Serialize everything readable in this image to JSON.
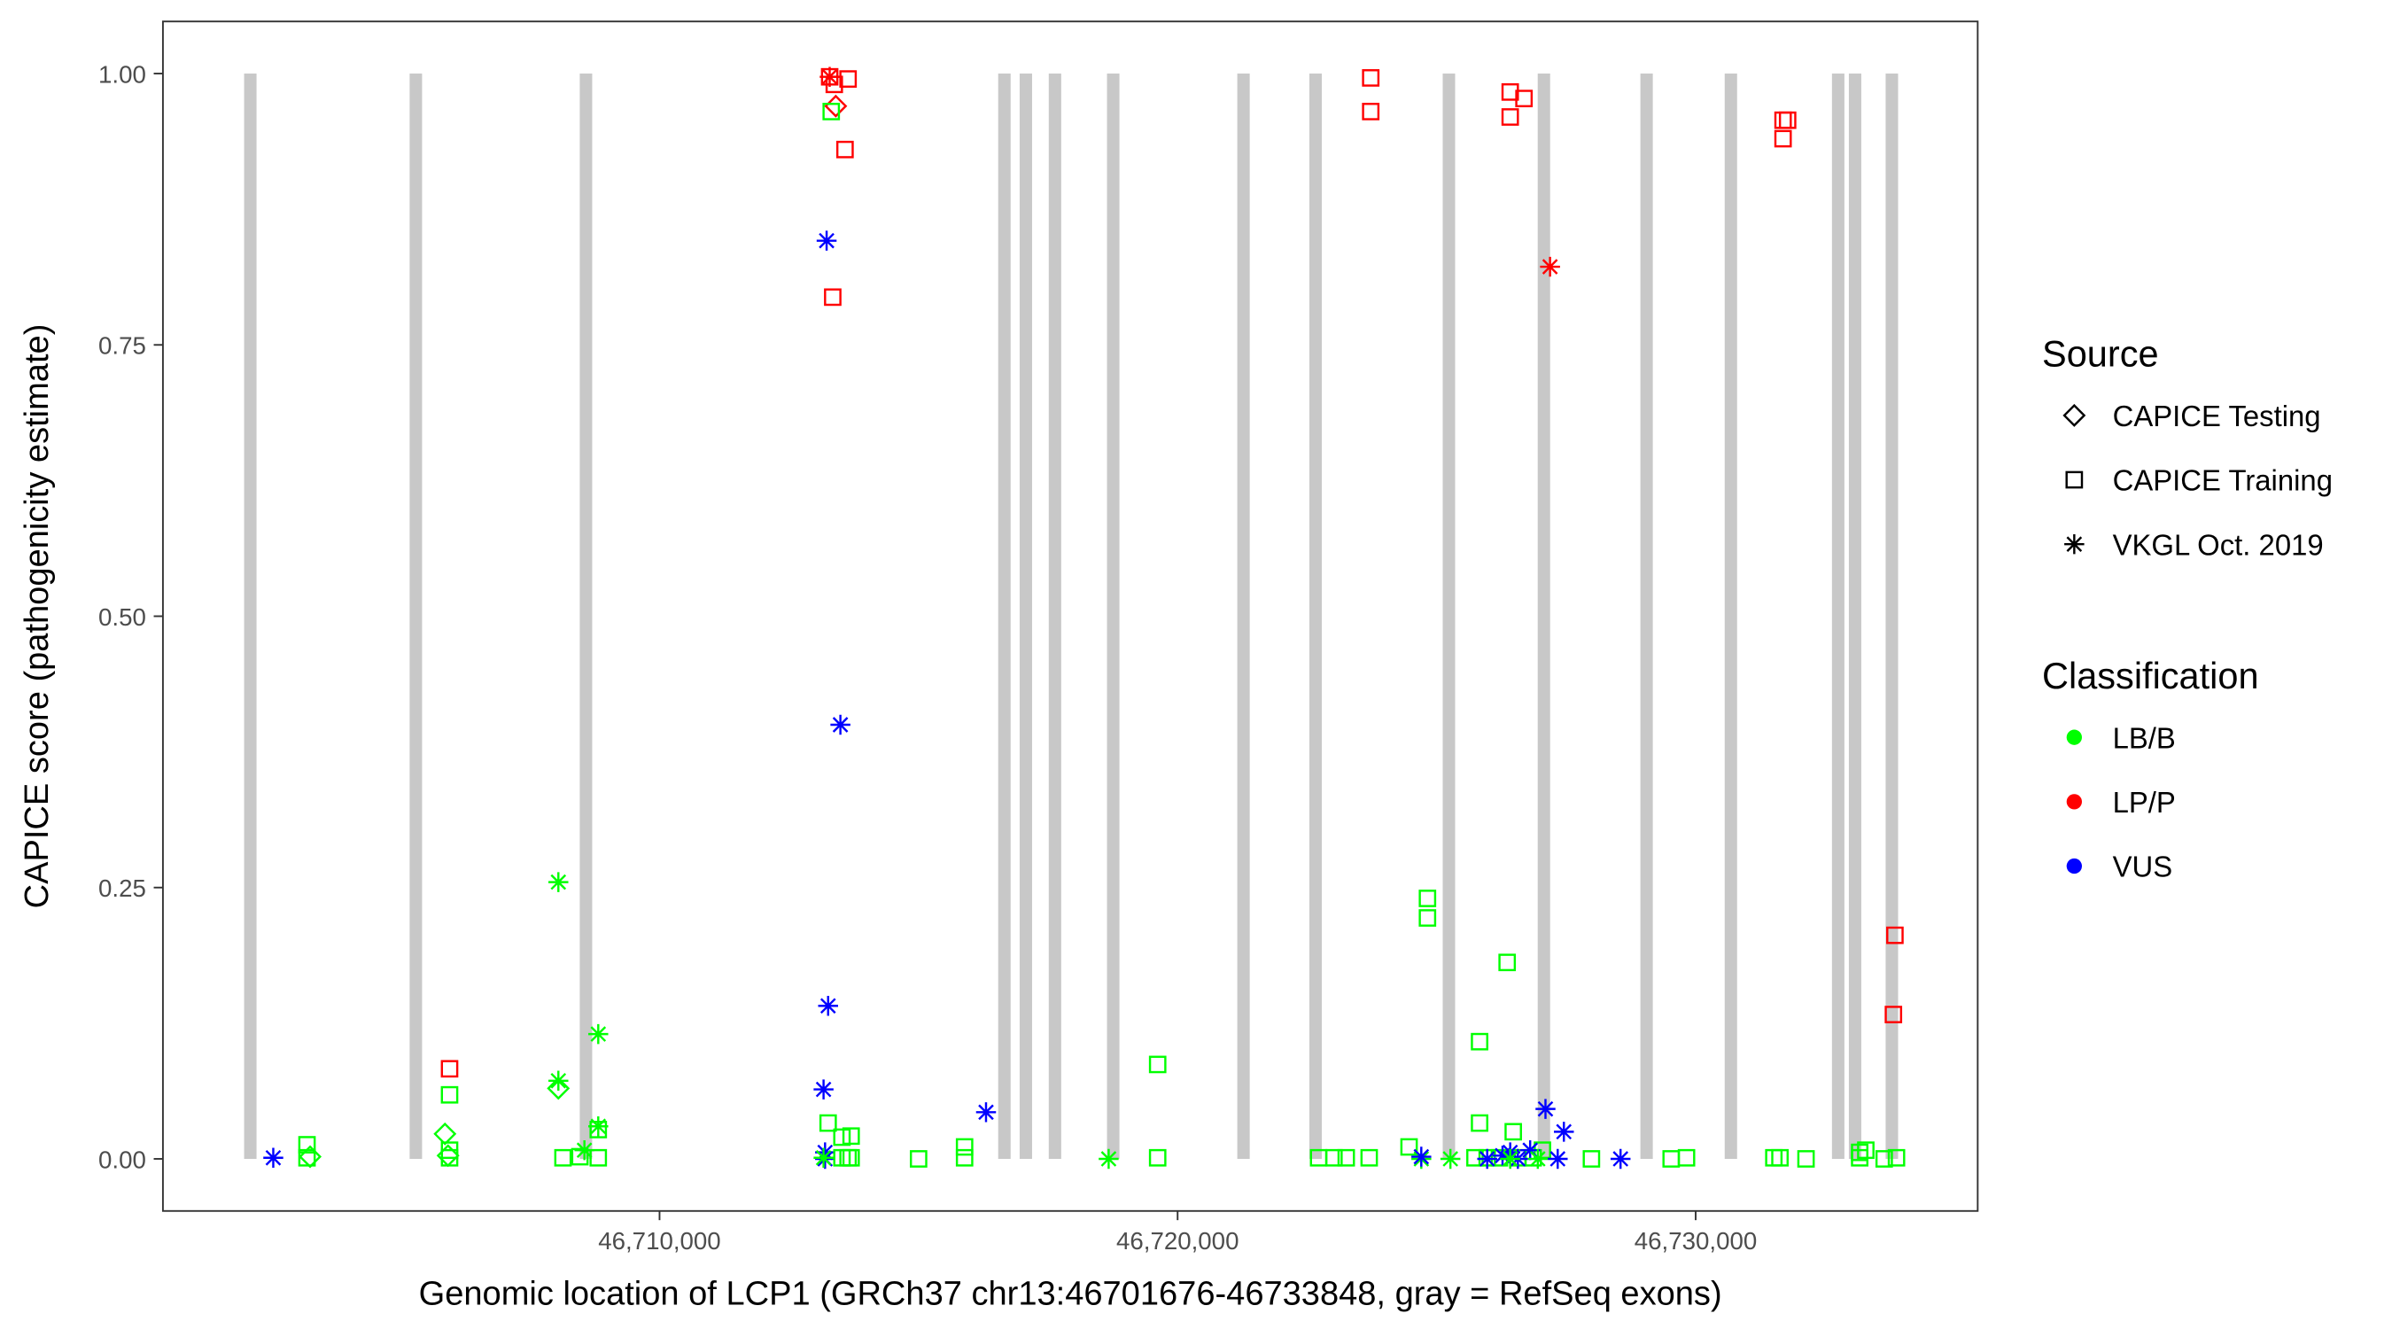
{
  "chart_data": {
    "type": "scatter",
    "title": "",
    "xlabel": "Genomic location of LCP1 (GRCh37 chr13:46701676-46733848, gray = RefSeq exons)",
    "ylabel": "CAPICE score (pathogenicity estimate)",
    "xlim": [
      46700414,
      46735444
    ],
    "ylim": [
      -0.048,
      1.048
    ],
    "x_ticks": [
      46710000,
      46720000,
      46730000
    ],
    "x_tick_labels": [
      "46,710,000",
      "46,720,000",
      "46,730,000"
    ],
    "y_ticks": [
      0,
      0.25,
      0.5,
      0.75,
      1.0
    ],
    "y_tick_labels": [
      "0.00",
      "0.25",
      "0.50",
      "0.75",
      "1.00"
    ],
    "grid": false,
    "legend_placement": "right",
    "exons": [
      [
        46701981,
        46702221
      ],
      [
        46705176,
        46705416
      ],
      [
        46708460,
        46708700
      ],
      [
        46716537,
        46716777
      ],
      [
        46716951,
        46717191
      ],
      [
        46717513,
        46717753
      ],
      [
        46718637,
        46718877
      ],
      [
        46721152,
        46721392
      ],
      [
        46722543,
        46722783
      ],
      [
        46725117,
        46725357
      ],
      [
        46726951,
        46727191
      ],
      [
        46728933,
        46729173
      ],
      [
        46730560,
        46730800
      ],
      [
        46732631,
        46732871
      ],
      [
        46732957,
        46733197
      ],
      [
        46733667,
        46733907
      ]
    ],
    "exon_color": "#c8c8c8",
    "legend": {
      "source": {
        "title": "Source",
        "items": [
          {
            "label": "CAPICE Testing",
            "key": "T",
            "shape": "diamond"
          },
          {
            "label": "CAPICE Training",
            "key": "R",
            "shape": "square"
          },
          {
            "label": "VKGL Oct. 2019",
            "key": "V",
            "shape": "asterisk"
          }
        ]
      },
      "classification": {
        "title": "Classification",
        "items": [
          {
            "label": "LB/B",
            "key": "B",
            "color": "#00ff00"
          },
          {
            "label": "LP/P",
            "key": "P",
            "color": "#ff0000"
          },
          {
            "label": "VUS",
            "key": "U",
            "color": "#0000ff"
          }
        ]
      }
    },
    "point_fields": [
      "position",
      "score",
      "source",
      "classification"
    ],
    "points": [
      [
        46702544,
        0.001,
        "V",
        "U"
      ],
      [
        46703195,
        0.013,
        "R",
        "B"
      ],
      [
        46703195,
        0.001,
        "R",
        "B"
      ],
      [
        46703255,
        0.002,
        "T",
        "B"
      ],
      [
        46705947,
        0.083,
        "R",
        "P"
      ],
      [
        46705947,
        0.059,
        "R",
        "B"
      ],
      [
        46705858,
        0.023,
        "T",
        "B"
      ],
      [
        46705947,
        0.008,
        "R",
        "B"
      ],
      [
        46705947,
        0.001,
        "R",
        "B"
      ],
      [
        46705917,
        0.003,
        "T",
        "B"
      ],
      [
        46708047,
        0.255,
        "V",
        "B"
      ],
      [
        46708047,
        0.072,
        "V",
        "B"
      ],
      [
        46708047,
        0.065,
        "T",
        "B"
      ],
      [
        46708817,
        0.115,
        "V",
        "B"
      ],
      [
        46708817,
        0.03,
        "V",
        "B"
      ],
      [
        46708817,
        0.027,
        "R",
        "B"
      ],
      [
        46708550,
        0.008,
        "V",
        "B"
      ],
      [
        46708136,
        0.001,
        "R",
        "B"
      ],
      [
        46708462,
        0.002,
        "R",
        "B"
      ],
      [
        46708817,
        0.001,
        "R",
        "B"
      ],
      [
        46713284,
        0.997,
        "V",
        "P"
      ],
      [
        46713284,
        0.997,
        "R",
        "P"
      ],
      [
        46713373,
        0.99,
        "R",
        "P"
      ],
      [
        46713639,
        0.995,
        "R",
        "P"
      ],
      [
        46713402,
        0.97,
        "T",
        "P"
      ],
      [
        46713314,
        0.965,
        "R",
        "B"
      ],
      [
        46713580,
        0.93,
        "R",
        "P"
      ],
      [
        46713225,
        0.846,
        "V",
        "U"
      ],
      [
        46713343,
        0.794,
        "R",
        "P"
      ],
      [
        46713491,
        0.4,
        "V",
        "U"
      ],
      [
        46713254,
        0.141,
        "V",
        "U"
      ],
      [
        46713166,
        0.064,
        "V",
        "U"
      ],
      [
        46713254,
        0.033,
        "R",
        "B"
      ],
      [
        46713521,
        0.02,
        "R",
        "B"
      ],
      [
        46713698,
        0.021,
        "R",
        "B"
      ],
      [
        46713195,
        0.006,
        "V",
        "U"
      ],
      [
        46713195,
        0.0,
        "V",
        "U"
      ],
      [
        46713166,
        0.001,
        "V",
        "B"
      ],
      [
        46713521,
        0.001,
        "R",
        "B"
      ],
      [
        46713639,
        0.001,
        "R",
        "B"
      ],
      [
        46713698,
        0.001,
        "R",
        "B"
      ],
      [
        46715000,
        0.0,
        "R",
        "B"
      ],
      [
        46715888,
        0.011,
        "R",
        "B"
      ],
      [
        46715888,
        0.001,
        "R",
        "B"
      ],
      [
        46716302,
        0.043,
        "V",
        "U"
      ],
      [
        46718669,
        0.0,
        "V",
        "B"
      ],
      [
        46719615,
        0.087,
        "R",
        "B"
      ],
      [
        46719615,
        0.001,
        "R",
        "B"
      ],
      [
        46722722,
        0.001,
        "R",
        "B"
      ],
      [
        46723018,
        0.001,
        "R",
        "B"
      ],
      [
        46723255,
        0.001,
        "R",
        "B"
      ],
      [
        46723698,
        0.001,
        "R",
        "B"
      ],
      [
        46723728,
        0.996,
        "R",
        "P"
      ],
      [
        46723728,
        0.965,
        "R",
        "P"
      ],
      [
        46724468,
        0.011,
        "R",
        "B"
      ],
      [
        46724823,
        0.24,
        "R",
        "B"
      ],
      [
        46724823,
        0.222,
        "R",
        "B"
      ],
      [
        46724704,
        0.0,
        "V",
        "B"
      ],
      [
        46724704,
        0.002,
        "V",
        "U"
      ],
      [
        46725266,
        0.0,
        "V",
        "B"
      ],
      [
        46725829,
        0.108,
        "R",
        "B"
      ],
      [
        46725829,
        0.033,
        "R",
        "B"
      ],
      [
        46726361,
        0.181,
        "R",
        "B"
      ],
      [
        46726479,
        0.025,
        "R",
        "B"
      ],
      [
        46725740,
        0.001,
        "R",
        "B"
      ],
      [
        46725976,
        0.001,
        "R",
        "B"
      ],
      [
        46726213,
        0.001,
        "R",
        "B"
      ],
      [
        46726568,
        0.001,
        "R",
        "B"
      ],
      [
        46726864,
        0.001,
        "R",
        "B"
      ],
      [
        46727042,
        0.008,
        "R",
        "B"
      ],
      [
        46725976,
        0.0,
        "V",
        "U"
      ],
      [
        46726272,
        0.003,
        "V",
        "U"
      ],
      [
        46726420,
        0.006,
        "V",
        "U"
      ],
      [
        46726568,
        0.0,
        "V",
        "U"
      ],
      [
        46726805,
        0.008,
        "V",
        "U"
      ],
      [
        46727101,
        0.046,
        "V",
        "U"
      ],
      [
        46727337,
        0.0,
        "V",
        "U"
      ],
      [
        46727456,
        0.025,
        "V",
        "U"
      ],
      [
        46728550,
        0.0,
        "V",
        "U"
      ],
      [
        46726420,
        0.0,
        "V",
        "B"
      ],
      [
        46726953,
        0.0,
        "V",
        "B"
      ],
      [
        46726420,
        0.983,
        "R",
        "P"
      ],
      [
        46726686,
        0.977,
        "R",
        "P"
      ],
      [
        46726420,
        0.96,
        "R",
        "P"
      ],
      [
        46727189,
        0.822,
        "V",
        "P"
      ],
      [
        46727988,
        0.0,
        "R",
        "B"
      ],
      [
        46729527,
        0.0,
        "R",
        "B"
      ],
      [
        46729823,
        0.001,
        "R",
        "B"
      ],
      [
        46731509,
        0.001,
        "R",
        "B"
      ],
      [
        46731627,
        0.001,
        "R",
        "B"
      ],
      [
        46732130,
        0.0,
        "R",
        "B"
      ],
      [
        46731687,
        0.957,
        "R",
        "P"
      ],
      [
        46731775,
        0.957,
        "R",
        "P"
      ],
      [
        46731687,
        0.94,
        "R",
        "P"
      ],
      [
        46733166,
        0.006,
        "R",
        "B"
      ],
      [
        46733284,
        0.008,
        "R",
        "B"
      ],
      [
        46733166,
        0.001,
        "R",
        "B"
      ],
      [
        46733639,
        0.0,
        "R",
        "B"
      ],
      [
        46733876,
        0.001,
        "R",
        "B"
      ],
      [
        46733846,
        0.206,
        "R",
        "P"
      ],
      [
        46733817,
        0.133,
        "R",
        "P"
      ]
    ]
  }
}
